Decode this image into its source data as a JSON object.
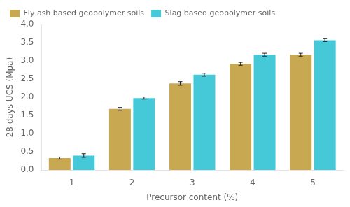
{
  "chart_data": {
    "type": "bar",
    "xlabel": "Precursor content (%)",
    "ylabel": "28 days UCS (Mpa)",
    "categories": [
      "1",
      "2",
      "3",
      "4",
      "5"
    ],
    "series": [
      {
        "name": "Fly ash based geopolymer soils",
        "color": "#C8A951",
        "values": [
          0.33,
          1.68,
          2.38,
          2.92,
          3.17
        ],
        "errors": [
          0.03,
          0.04,
          0.05,
          0.04,
          0.04
        ]
      },
      {
        "name": "Slag based geopolymer soils",
        "color": "#45C8D8",
        "values": [
          0.4,
          1.98,
          2.62,
          3.17,
          3.57
        ],
        "errors": [
          0.05,
          0.03,
          0.04,
          0.04,
          0.04
        ]
      }
    ],
    "ylim": [
      0,
      4
    ],
    "yticks": [
      {
        "value": 0,
        "label": "0.0"
      },
      0.5,
      {
        "value": 1,
        "label": "1.0"
      },
      1.5,
      {
        "value": 2,
        "label": "2.0"
      },
      2.5,
      {
        "value": 3,
        "label": "3.0"
      },
      3.5,
      {
        "value": 4,
        "label": "4.0"
      }
    ],
    "grid": false,
    "legend": "upper left"
  }
}
